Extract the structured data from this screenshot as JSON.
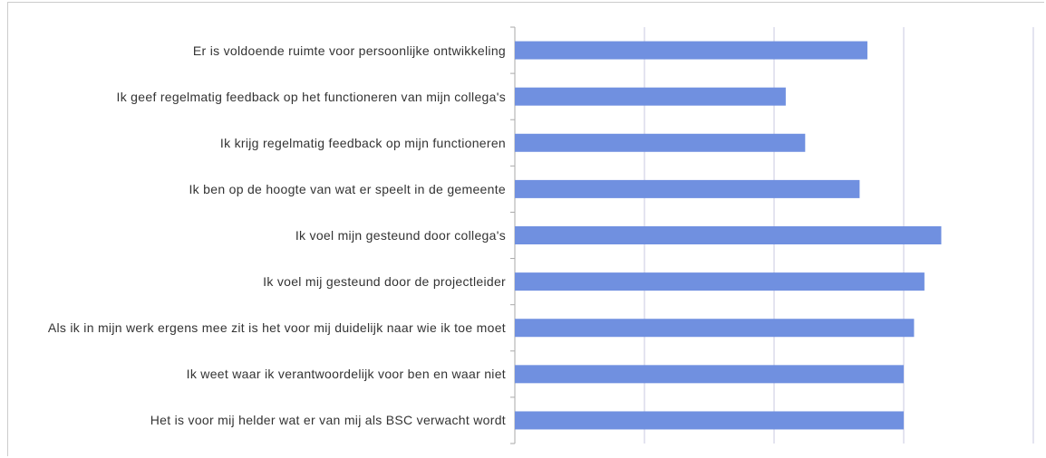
{
  "chart_data": {
    "type": "bar",
    "orientation": "horizontal",
    "categories": [
      "Er is voldoende ruimte voor persoonlijke ontwikkeling",
      "Ik geef regelmatig feedback op het functioneren van mijn collega's",
      "Ik krijg regelmatig feedback op mijn functioneren",
      "Ik ben op de hoogte van wat er speelt in de gemeente",
      "Ik voel mijn gesteund door collega's",
      "Ik voel mij gesteund door de projectleider",
      "Als ik in mijn werk ergens mee zit is het voor mij duidelijk naar wie ik toe moet",
      "Ik weet waar ik verantwoordelijk voor ben en waar niet",
      "Het is voor mij helder wat er van mij als BSC verwacht wordt"
    ],
    "values": [
      3.72,
      3.09,
      3.24,
      3.66,
      4.29,
      4.16,
      4.08,
      4.0,
      4.0
    ],
    "color": "#7090e0",
    "xlim": [
      1,
      5
    ],
    "xticks": [
      1,
      2,
      3,
      4,
      5
    ],
    "grid": true
  }
}
